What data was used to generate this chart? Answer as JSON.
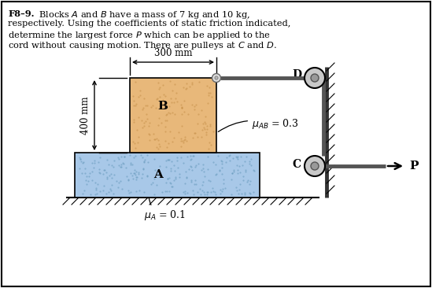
{
  "bg_color": "#ffffff",
  "block_A_color": "#a8c8e8",
  "block_B_color": "#e8b87a",
  "dim_300": "300 mm",
  "dim_400": "400 mm",
  "label_mu_AB": "$\\mu_{AB}$ = 0.3",
  "label_mu_A": "$\\mu_{A}$ = 0.1",
  "label_A": "A",
  "label_B": "B",
  "label_C": "C",
  "label_D": "D",
  "label_P": "P",
  "text_line1_bold": "F8–9.",
  "text_line1_normal": "  Blocks $A$ and $B$ have a mass of 7 kg and 10 kg,",
  "text_line2": "respectively. Using the coefficients of static friction indicated,",
  "text_line3": "determine the largest force $P$ which can be applied to the",
  "text_line4": "cord without causing motion. There are pulleys at $C$ and $D$.",
  "rope_color": "#555555",
  "wall_color": "#333333",
  "pulley_outer": "#c8c8c8",
  "pulley_inner": "#999999"
}
